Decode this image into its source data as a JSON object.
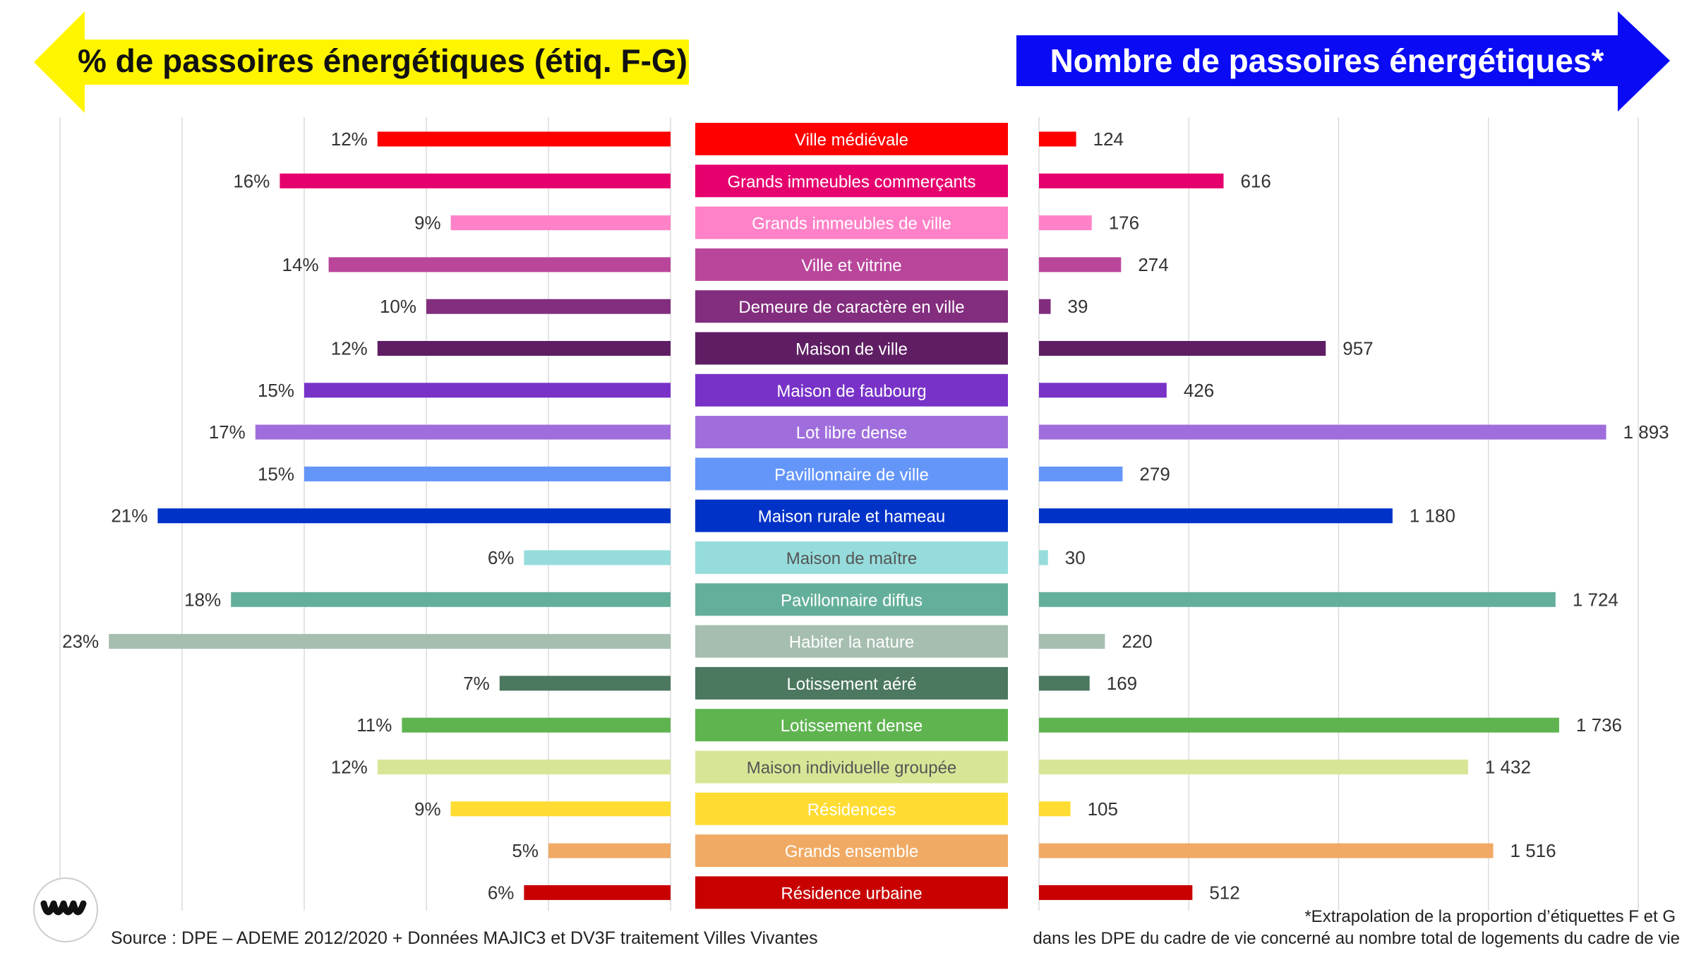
{
  "header": {
    "left_title": "% de passoires énergétiques (étiq. F-G)",
    "right_title": "Nombre de passoires énergétiques*",
    "left_color": "#FFF500",
    "right_color": "#0A0AF5"
  },
  "footer": {
    "source": "Source : DPE – ADEME 2012/2020 + Données MAJIC3 et DV3F traitement Villes Vivantes",
    "note_line1": "*Extrapolation de la proportion d’étiquettes F et G",
    "note_line2": "dans les DPE du cadre de vie concerné au nombre total de logements du cadre de vie"
  },
  "logo": {
    "icon": "villes-vivantes-logo-icon"
  },
  "chart_data": [
    {
      "type": "bar",
      "orientation": "horizontal-left",
      "title": "% de passoires énergétiques (étiq. F-G)",
      "unit": "%",
      "xlim": [
        0,
        25
      ],
      "grid": true,
      "categories": [
        "Ville médiévale",
        "Grands immeubles commerçants",
        "Grands immeubles de ville",
        "Ville et vitrine",
        "Demeure de caractère en ville",
        "Maison de ville",
        "Maison de faubourg",
        "Lot libre dense",
        "Pavillonnaire de ville",
        "Maison rurale et hameau",
        "Maison de maître",
        "Pavillonnaire diffus",
        "Habiter la nature",
        "Lotissement aéré",
        "Lotissement dense",
        "Maison individuelle groupée",
        "Résidences",
        "Grands ensemble",
        "Résidence urbaine"
      ],
      "values": [
        12,
        16,
        9,
        14,
        10,
        12,
        15,
        17,
        15,
        21,
        6,
        18,
        23,
        7,
        11,
        12,
        9,
        5,
        6
      ],
      "value_labels": [
        "12%",
        "16%",
        "9%",
        "14%",
        "10%",
        "12%",
        "15%",
        "17%",
        "15%",
        "21%",
        "6%",
        "18%",
        "23%",
        "7%",
        "11%",
        "12%",
        "9%",
        "5%",
        "6%"
      ]
    },
    {
      "type": "bar",
      "orientation": "horizontal-right",
      "title": "Nombre de passoires énergétiques*",
      "xlim": [
        0,
        2000
      ],
      "grid": true,
      "categories": [
        "Ville médiévale",
        "Grands immeubles commerçants",
        "Grands immeubles de ville",
        "Ville et vitrine",
        "Demeure de caractère en ville",
        "Maison de ville",
        "Maison de faubourg",
        "Lot libre dense",
        "Pavillonnaire de ville",
        "Maison rurale et hameau",
        "Maison de maître",
        "Pavillonnaire diffus",
        "Habiter la nature",
        "Lotissement aéré",
        "Lotissement dense",
        "Maison individuelle groupée",
        "Résidences",
        "Grands ensemble",
        "Résidence urbaine"
      ],
      "values": [
        124,
        616,
        176,
        274,
        39,
        957,
        426,
        1893,
        279,
        1180,
        30,
        1724,
        220,
        169,
        1736,
        1432,
        105,
        1516,
        512
      ],
      "value_labels": [
        "124",
        "616",
        "176",
        "274",
        "39",
        "957",
        "426",
        "1 893",
        "279",
        "1 180",
        "30",
        "1 724",
        "220",
        "169",
        "1 736",
        "1 432",
        "105",
        "1 516",
        "512"
      ]
    }
  ],
  "category_colors": [
    "#FF0000",
    "#E6006E",
    "#FF82C8",
    "#B9469B",
    "#822D7D",
    "#5F1E64",
    "#7832C8",
    "#A06EDC",
    "#6496FA",
    "#0032C8",
    "#96DCDC",
    "#64AF9B",
    "#A5BEAF",
    "#4B785F",
    "#5FB450",
    "#D7E696",
    "#FFDC32",
    "#F0AA64",
    "#C80000"
  ],
  "category_text_colors": [
    "#FFFFFF",
    "#FFFFFF",
    "#FFFFFF",
    "#FFFFFF",
    "#FFFFFF",
    "#FFFFFF",
    "#FFFFFF",
    "#FFFFFF",
    "#FFFFFF",
    "#FFFFFF",
    "#555555",
    "#FFFFFF",
    "#FFFFFF",
    "#FFFFFF",
    "#FFFFFF",
    "#555555",
    "#FFFFFF",
    "#FFFFFF",
    "#FFFFFF"
  ]
}
